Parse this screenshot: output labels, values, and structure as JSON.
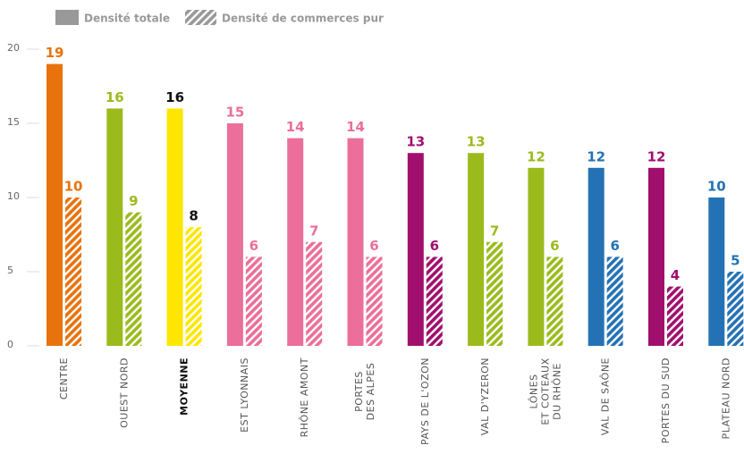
{
  "chart_data": {
    "type": "bar",
    "categories": [
      "CENTRE",
      "OUEST NORD",
      "MOYENNE",
      "EST LYONNAIS",
      "RHÔNE AMONT",
      "PORTES\nDES ALPES",
      "PAYS DE L'OZON",
      "VAL D'YZERON",
      "LÔNES\nET COTEAUX\nDU RHÔNE",
      "VAL DE SAÔNE",
      "PORTES DU SUD",
      "PLATEAU NORD"
    ],
    "colors": [
      "#e8730c",
      "#9bbb1c",
      "#ffe600",
      "#eb6f9a",
      "#eb6f9a",
      "#eb6f9a",
      "#a10f6e",
      "#9bbb1c",
      "#9bbb1c",
      "#2472b5",
      "#a10f6e",
      "#2472b5"
    ],
    "value_label_colors": [
      "#e8730c",
      "#9bbb1c",
      "#111111",
      "#eb6f9a",
      "#eb6f9a",
      "#eb6f9a",
      "#a10f6e",
      "#9bbb1c",
      "#9bbb1c",
      "#2472b5",
      "#a10f6e",
      "#2472b5"
    ],
    "highlight_category": 2,
    "legend_color": "#999999",
    "series": [
      {
        "name": "Densité totale",
        "style": "solid",
        "values": [
          19,
          16,
          16,
          15,
          14,
          14,
          13,
          13,
          12,
          12,
          12,
          10
        ]
      },
      {
        "name": "Densité de commerces pur",
        "style": "hatched",
        "values": [
          10,
          9,
          8,
          6,
          7,
          6,
          6,
          7,
          6,
          6,
          4,
          5
        ]
      }
    ],
    "ylim": [
      0,
      20
    ],
    "yticks": [
      0,
      5,
      10,
      15,
      20
    ],
    "grid": false
  }
}
